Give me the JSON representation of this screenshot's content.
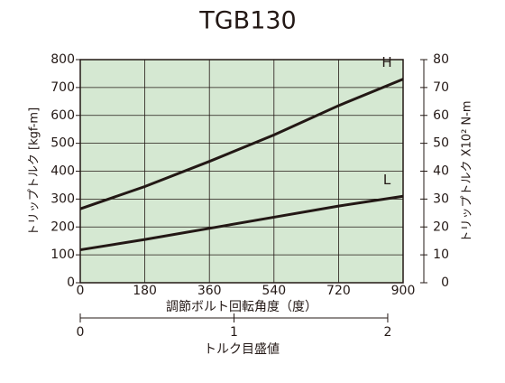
{
  "chart_data": {
    "type": "line",
    "title": "TGB130",
    "x": [
      0,
      180,
      360,
      540,
      720,
      900
    ],
    "series": [
      {
        "name": "H",
        "color": "#231815",
        "values": [
          265,
          345,
          435,
          530,
          635,
          730
        ]
      },
      {
        "name": "L",
        "color": "#231815",
        "values": [
          118,
          155,
          195,
          235,
          275,
          310
        ]
      }
    ],
    "xlim": [
      0,
      900
    ],
    "xticks": [
      0,
      180,
      360,
      540,
      720,
      900
    ],
    "ylim": [
      0,
      800
    ],
    "yticks": [
      0,
      100,
      200,
      300,
      400,
      500,
      600,
      700,
      800
    ],
    "y2lim": [
      0,
      80
    ],
    "y2ticks": [
      0,
      10,
      20,
      30,
      40,
      50,
      60,
      70,
      80
    ],
    "x2lim": [
      0,
      2.1
    ],
    "x2ticks": [
      0,
      1,
      2
    ],
    "xlabel": "調節ボルト回転角度（度）",
    "ylabel": "トリップトルク [kgf-m]",
    "y2label": "トリップトルク X10² N-m",
    "x2label": "トルク目盛値",
    "grid": true,
    "plot_background": "#d5e8d2"
  }
}
